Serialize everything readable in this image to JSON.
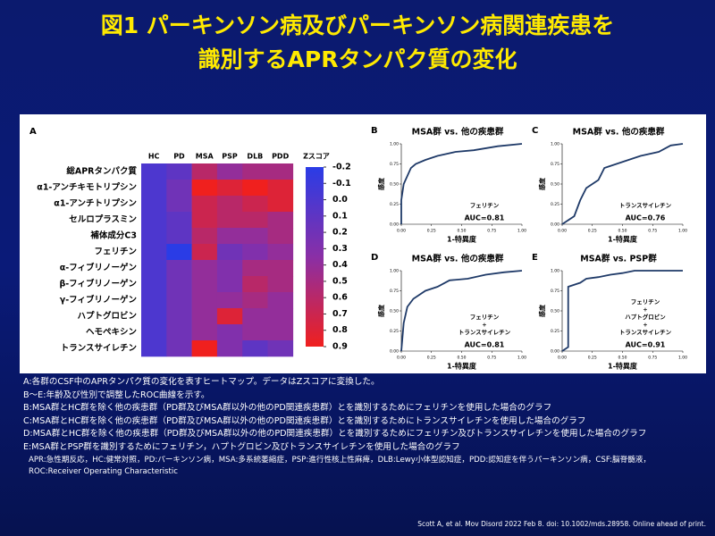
{
  "title": [
    "図1 パーキンソン病及びパーキンソン病関連疾患を",
    "識別するAPRタンパク質の変化"
  ],
  "chart_data": [
    {
      "type": "heatmap",
      "panel": "A",
      "x_categories": [
        "HC",
        "PD",
        "MSA",
        "PSP",
        "DLB",
        "PDD"
      ],
      "y_categories": [
        "総APRタンパク質",
        "α1-アンチキモトリプシン",
        "α1-アンチトリプシン",
        "セルロプラスミン",
        "補体成分C3",
        "フェリチン",
        "α-フィブリノーゲン",
        "β-フィブリノーゲン",
        "γ-フィブリノーゲン",
        "ハプトグロビン",
        "ヘモペキシン",
        "トランスサイレチン"
      ],
      "values": [
        [
          0.0,
          0.1,
          0.6,
          0.4,
          0.5,
          0.5
        ],
        [
          0.0,
          0.2,
          0.9,
          0.8,
          0.9,
          0.8
        ],
        [
          0.0,
          0.2,
          0.7,
          0.6,
          0.7,
          0.8
        ],
        [
          0.0,
          0.1,
          0.7,
          0.6,
          0.6,
          0.5
        ],
        [
          0.0,
          0.1,
          0.6,
          0.4,
          0.4,
          0.5
        ],
        [
          0.0,
          -0.2,
          0.7,
          0.2,
          0.3,
          0.4
        ],
        [
          0.0,
          0.2,
          0.4,
          0.3,
          0.5,
          0.5
        ],
        [
          0.0,
          0.2,
          0.4,
          0.3,
          0.6,
          0.5
        ],
        [
          0.0,
          0.2,
          0.4,
          0.4,
          0.5,
          0.4
        ],
        [
          0.0,
          0.2,
          0.4,
          0.8,
          0.4,
          0.4
        ],
        [
          0.0,
          0.2,
          0.4,
          0.3,
          0.4,
          0.4
        ],
        [
          0.0,
          0.2,
          0.9,
          0.3,
          0.1,
          0.2
        ]
      ],
      "colorbar_title": "Zスコア",
      "zlim": [
        -0.2,
        0.9
      ],
      "zticks": [
        -0.2,
        -0.1,
        {
          "value": 0,
          "label": "0.0"
        },
        0.1,
        0.2,
        0.3,
        0.4,
        0.5,
        0.6,
        0.7,
        0.8,
        0.9
      ],
      "colormap": [
        "#2a3ce6",
        "#8a2fa6",
        "#f0201e"
      ]
    },
    {
      "type": "line",
      "panel": "B",
      "title": "MSA群 vs. 他の疾患群",
      "x": [
        0,
        0,
        0.02,
        0.05,
        0.08,
        0.12,
        0.2,
        0.3,
        0.45,
        0.6,
        0.8,
        1
      ],
      "y": [
        0,
        0.3,
        0.5,
        0.6,
        0.7,
        0.75,
        0.8,
        0.85,
        0.9,
        0.92,
        0.97,
        1
      ],
      "color": "#1f3a68",
      "xlim": [
        0,
        1
      ],
      "ylim": [
        0,
        1
      ],
      "xticks": [
        {
          "value": 0,
          "label": "0.00"
        },
        {
          "value": 0.25,
          "label": "0.25"
        },
        {
          "value": 0.5,
          "label": "0.50"
        },
        {
          "value": 0.75,
          "label": "0.75"
        },
        {
          "value": 1,
          "label": "1.00"
        }
      ],
      "yticks": [
        {
          "value": 0,
          "label": "0.00"
        },
        {
          "value": 0.25,
          "label": "0.25"
        },
        {
          "value": 0.5,
          "label": "0.50"
        },
        {
          "value": 0.75,
          "label": "0.75"
        },
        {
          "value": 1,
          "label": "1.00"
        }
      ],
      "xlabel": "1-特異度",
      "ylabel": "感度",
      "annotation": [
        "フェリチン"
      ],
      "auc": "AUC=0.81"
    },
    {
      "type": "line",
      "panel": "C",
      "title": "MSA群 vs. 他の疾患群",
      "x": [
        0,
        0.1,
        0.15,
        0.2,
        0.3,
        0.35,
        0.45,
        0.55,
        0.65,
        0.8,
        0.9,
        1
      ],
      "y": [
        0,
        0.1,
        0.3,
        0.45,
        0.55,
        0.7,
        0.75,
        0.8,
        0.85,
        0.9,
        0.98,
        1
      ],
      "color": "#1f3a68",
      "xlim": [
        0,
        1
      ],
      "ylim": [
        0,
        1
      ],
      "xticks": [
        {
          "value": 0,
          "label": "0.00"
        },
        {
          "value": 0.25,
          "label": "0.25"
        },
        {
          "value": 0.5,
          "label": "0.50"
        },
        {
          "value": 0.75,
          "label": "0.75"
        },
        {
          "value": 1,
          "label": "1.00"
        }
      ],
      "yticks": [
        {
          "value": 0,
          "label": "0.00"
        },
        {
          "value": 0.25,
          "label": "0.25"
        },
        {
          "value": 0.5,
          "label": "0.50"
        },
        {
          "value": 0.75,
          "label": "0.75"
        },
        {
          "value": 1,
          "label": "1.00"
        }
      ],
      "xlabel": "1-特異度",
      "ylabel": "感度",
      "annotation": [
        "トランスサイレチン"
      ],
      "auc": "AUC=0.76"
    },
    {
      "type": "line",
      "panel": "D",
      "title": "MSA群 vs. 他の疾患群",
      "x": [
        0,
        0.02,
        0.05,
        0.1,
        0.2,
        0.3,
        0.4,
        0.55,
        0.7,
        0.85,
        1
      ],
      "y": [
        0,
        0.35,
        0.55,
        0.65,
        0.75,
        0.8,
        0.88,
        0.9,
        0.95,
        0.98,
        1
      ],
      "color": "#1f3a68",
      "xlim": [
        0,
        1
      ],
      "ylim": [
        0,
        1
      ],
      "xticks": [
        {
          "value": 0,
          "label": "0.00"
        },
        {
          "value": 0.25,
          "label": "0.25"
        },
        {
          "value": 0.5,
          "label": "0.50"
        },
        {
          "value": 0.75,
          "label": "0.75"
        },
        {
          "value": 1,
          "label": "1.00"
        }
      ],
      "yticks": [
        {
          "value": 0,
          "label": "0.00"
        },
        {
          "value": 0.25,
          "label": "0.25"
        },
        {
          "value": 0.5,
          "label": "0.50"
        },
        {
          "value": 0.75,
          "label": "0.75"
        },
        {
          "value": 1,
          "label": "1.00"
        }
      ],
      "xlabel": "1-特異度",
      "ylabel": "感度",
      "annotation": [
        "フェリチン",
        "+",
        "トランスサイレチン"
      ],
      "auc": "AUC=0.81"
    },
    {
      "type": "line",
      "panel": "E",
      "title": "MSA群 vs. PSP群",
      "x": [
        0,
        0.05,
        0.05,
        0.15,
        0.2,
        0.3,
        0.4,
        0.5,
        0.6,
        0.75,
        1
      ],
      "y": [
        0,
        0.05,
        0.8,
        0.85,
        0.9,
        0.92,
        0.95,
        0.97,
        1,
        1,
        1
      ],
      "color": "#1f3a68",
      "xlim": [
        0,
        1
      ],
      "ylim": [
        0,
        1
      ],
      "xticks": [
        {
          "value": 0,
          "label": "0.00"
        },
        {
          "value": 0.25,
          "label": "0.25"
        },
        {
          "value": 0.5,
          "label": "0.50"
        },
        {
          "value": 0.75,
          "label": "0.75"
        },
        {
          "value": 1,
          "label": "1.00"
        }
      ],
      "yticks": [
        {
          "value": 0,
          "label": "0.00"
        },
        {
          "value": 0.25,
          "label": "0.25"
        },
        {
          "value": 0.5,
          "label": "0.50"
        },
        {
          "value": 0.75,
          "label": "0.75"
        },
        {
          "value": 1,
          "label": "1.00"
        }
      ],
      "xlabel": "1-特異度",
      "ylabel": "感度",
      "annotation": [
        "フェリチン",
        "+",
        "ハプトグロビン",
        "+",
        "トランスサイレチン"
      ],
      "auc": "AUC=0.91"
    }
  ],
  "notes": [
    "A:各群のCSF中のAPRタンパク質の変化を表すヒートマップ。データはZスコアに変換した。",
    "B～E:年齢及び性別で調整したROC曲線を示す。",
    "B:MSA群とHC群を除く他の疾患群（PD群及びMSA群以外の他のPD関連疾患群）とを識別するためにフェリチンを使用した場合のグラフ",
    "C:MSA群とHC群を除く他の疾患群（PD群及びMSA群以外の他のPD関連疾患群）とを識別するためにトランスサイレチンを使用した場合のグラフ",
    "D:MSA群とHC群を除く他の疾患群（PD群及びMSA群以外の他のPD関連疾患群）とを識別するためにフェリチン及びトランスサイレチンを使用した場合のグラフ",
    "E:MSA群とPSP群を識別するためにフェリチン，ハプトグロビン及びトランスサイレチンを使用した場合のグラフ"
  ],
  "abbreviations": "APR:急性期反応，HC:健常対照，PD:パーキンソン病，MSA:多系統萎縮症，PSP:進行性核上性麻痺，DLB:Lewy小体型認知症，PDD:認知症を伴うパーキンソン病，CSF:脳脊髄液，ROC:Receiver  Operating Characteristic",
  "citation": "Scott A, et al. Mov Disord 2022 Feb 8. doi: 10.1002/mds.28958. Online ahead of print."
}
